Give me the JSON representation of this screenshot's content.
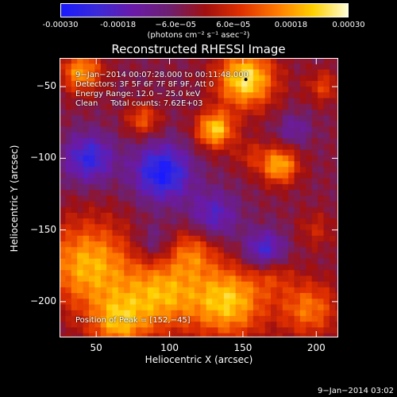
{
  "colorbar": {
    "ticks": [
      "-0.00030",
      "-0.00018",
      "−6.0e−05",
      "6.0e−05",
      "0.00018",
      "0.00030"
    ],
    "units": "(photons cm⁻² s⁻¹ asec⁻²)",
    "colors": [
      "#1a1aff",
      "#3a2ad8",
      "#6a1aa8",
      "#6d2070",
      "#a01010",
      "#e03000",
      "#ff7a00",
      "#ffd000",
      "#ffffe0"
    ]
  },
  "annotations": {
    "line1": "9−Jan−2014 00:07:28.000 to 00:11:48.000",
    "line2": "Detectors: 3F 5F 6F 7F 8F 9F, Att 0",
    "line3": "Energy Range: 12.0 − 25.0 keV",
    "line4": "Clean     Total counts: 7.62E+03",
    "peak": "Position of Peak = [152,−45]"
  },
  "timestamp": "9−Jan−2014 03:02",
  "chart_data": {
    "type": "heatmap",
    "title": "Reconstructed RHESSI Image",
    "xlabel": "Heliocentric X (arcsec)",
    "ylabel": "Heliocentric Y (arcsec)",
    "xlim": [
      25,
      215
    ],
    "ylim": [
      -225,
      -30
    ],
    "x_ticks": [
      50,
      100,
      150,
      200
    ],
    "y_ticks": [
      -50,
      -100,
      -150,
      -200
    ],
    "x_tick_labels": [
      "50",
      "100",
      "150",
      "200"
    ],
    "y_tick_labels": [
      "−50",
      "−100",
      "−150",
      "−200"
    ],
    "value_range": [
      -0.0003,
      0.0003
    ],
    "peak_position": [
      152,
      -45
    ],
    "features": [
      {
        "x": 131,
        "y": -80,
        "value": 0.00027,
        "radius": 9
      },
      {
        "x": 152,
        "y": -45,
        "value": 0.0003,
        "radius": 14
      },
      {
        "x": 40,
        "y": -40,
        "value": 0.00022,
        "radius": 10
      },
      {
        "x": 82,
        "y": -73,
        "value": 0.00015,
        "radius": 8
      },
      {
        "x": 175,
        "y": -105,
        "value": 0.00024,
        "radius": 9
      },
      {
        "x": 155,
        "y": -98,
        "value": 8e-05,
        "radius": 8
      },
      {
        "x": 205,
        "y": -50,
        "value": 0.00012,
        "radius": 8
      },
      {
        "x": 200,
        "y": -150,
        "value": 8e-05,
        "radius": 9
      },
      {
        "x": 45,
        "y": -175,
        "value": 0.00024,
        "radius": 22
      },
      {
        "x": 95,
        "y": -195,
        "value": 0.00022,
        "radius": 18
      },
      {
        "x": 140,
        "y": -200,
        "value": 0.00026,
        "radius": 18
      },
      {
        "x": 65,
        "y": -215,
        "value": 0.0002,
        "radius": 14
      },
      {
        "x": 115,
        "y": -165,
        "value": 0.00015,
        "radius": 12
      },
      {
        "x": 195,
        "y": -205,
        "value": 0.00018,
        "radius": 14
      },
      {
        "x": 170,
        "y": -180,
        "value": 0.0001,
        "radius": 10
      },
      {
        "x": 95,
        "y": -110,
        "value": -0.00025,
        "radius": 14
      },
      {
        "x": 45,
        "y": -100,
        "value": -0.0002,
        "radius": 12
      },
      {
        "x": 130,
        "y": -140,
        "value": -0.00015,
        "radius": 12
      },
      {
        "x": 165,
        "y": -165,
        "value": -0.0002,
        "radius": 10
      },
      {
        "x": 90,
        "y": -160,
        "value": -0.0001,
        "radius": 10
      },
      {
        "x": 185,
        "y": -80,
        "value": -0.0001,
        "radius": 8
      }
    ]
  }
}
